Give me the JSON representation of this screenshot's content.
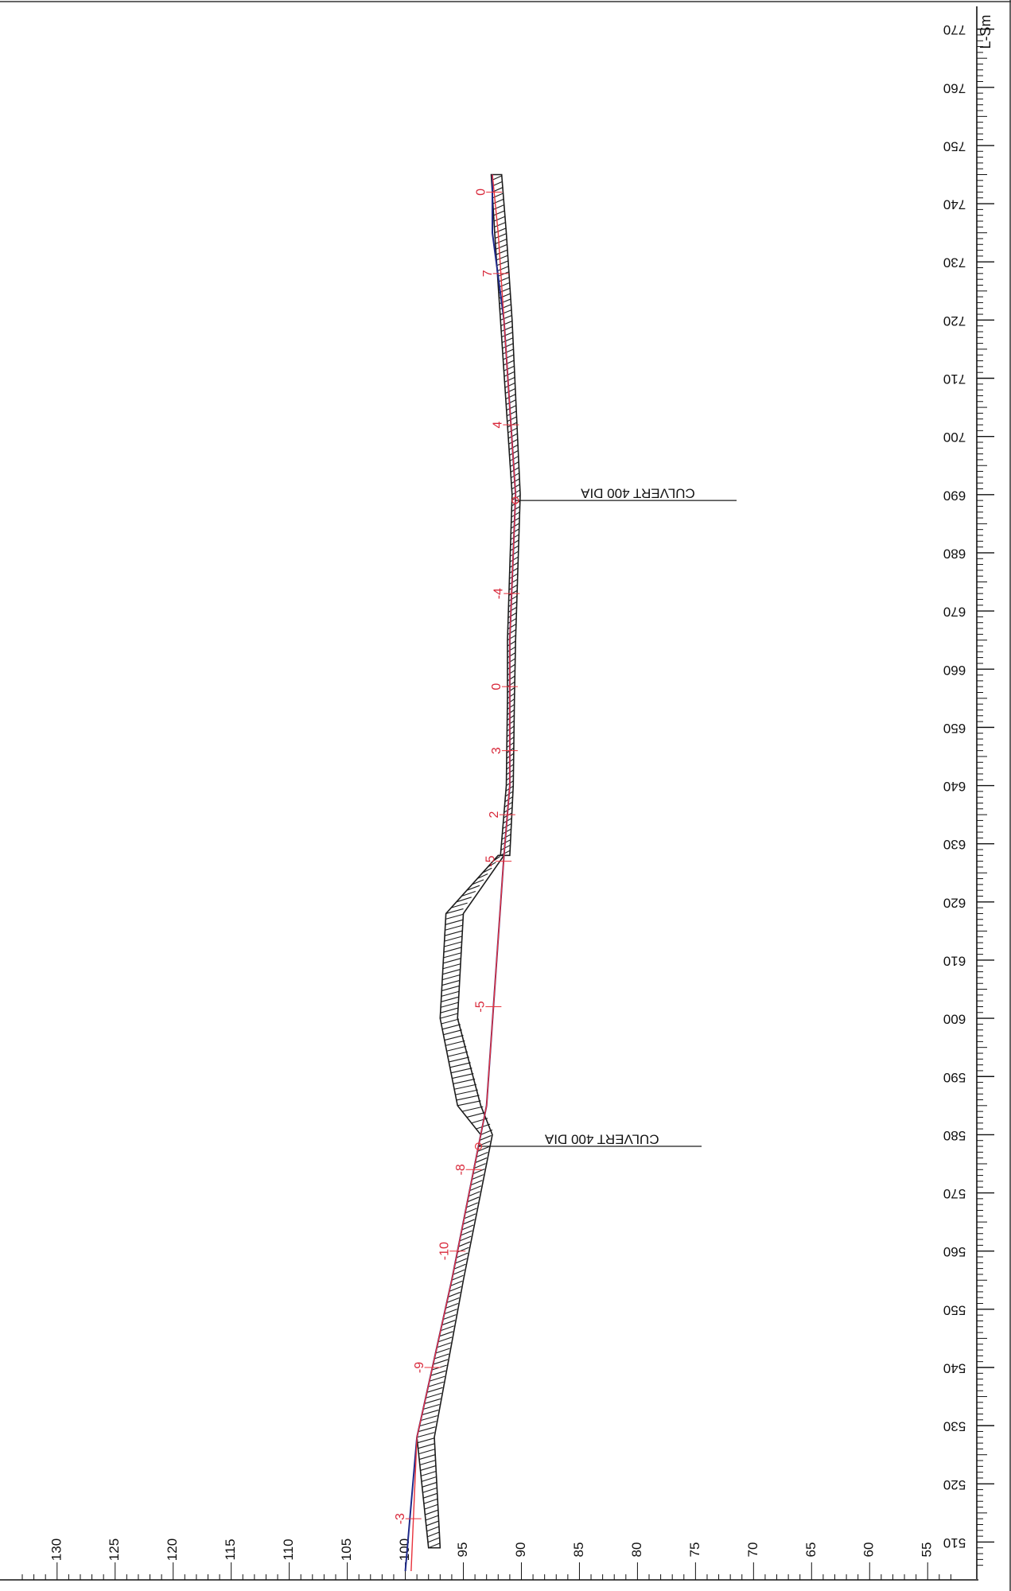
{
  "drawing": {
    "chainage_unit_label": "L-Sm",
    "chainage_ticks": [
      "510",
      "520",
      "530",
      "540",
      "550",
      "560",
      "570",
      "580",
      "590",
      "600",
      "610",
      "620",
      "630",
      "640",
      "650",
      "660",
      "670",
      "680",
      "690",
      "700",
      "710",
      "720",
      "730",
      "740",
      "750",
      "760",
      "770"
    ],
    "level_ticks": [
      "130",
      "125",
      "120",
      "115",
      "110",
      "105",
      "100",
      "95",
      "90",
      "85",
      "80",
      "75",
      "70",
      "65",
      "60",
      "55"
    ],
    "annotations": [
      {
        "text": "CULVERT 400 DIA"
      },
      {
        "text": "CULVERT 400 DIA"
      }
    ],
    "grade_labels": [
      "0",
      "7",
      "4",
      "-4",
      "0",
      "3",
      "2",
      "-5",
      "-5",
      "-8",
      "-10",
      "-9",
      "-3"
    ],
    "colors": {
      "design_line": "#1f2a8a",
      "existing_line": "#e8323c",
      "grade_text": "#d8283a",
      "hatch": "#1c1c1c",
      "axis": "#111111"
    }
  },
  "chart_data": {
    "type": "line",
    "x_label": "L-Sm",
    "x_range": [
      505,
      772
    ],
    "y_range": [
      52,
      133
    ],
    "x_ticks": [
      510,
      520,
      530,
      540,
      550,
      560,
      570,
      580,
      590,
      600,
      610,
      620,
      630,
      640,
      650,
      660,
      670,
      680,
      690,
      700,
      710,
      720,
      730,
      740,
      750,
      760,
      770
    ],
    "y_ticks": [
      130,
      125,
      120,
      115,
      110,
      105,
      100,
      95,
      90,
      85,
      80,
      75,
      70,
      65,
      60,
      55
    ],
    "series": [
      {
        "x": [
          505,
          528,
          555,
          580,
          585,
          628,
          640,
          655,
          665,
          690,
          720,
          735,
          745
        ],
        "y": [
          100,
          99,
          96,
          93.5,
          93,
          91.5,
          91,
          91,
          91,
          90.5,
          91.5,
          92.5,
          92.5
        ]
      },
      {
        "x": [
          505,
          528,
          555,
          580,
          585,
          628,
          640,
          655,
          665,
          690,
          720,
          735,
          745
        ],
        "y": [
          99.5,
          99,
          96,
          93.5,
          93,
          91.5,
          91,
          91,
          91,
          90.5,
          91.5,
          92,
          92.5
        ]
      }
    ],
    "culverts": [
      {
        "label": "CULVERT 400 DIA",
        "chainage": 578
      },
      {
        "label": "CULVERT 400 DIA",
        "chainage": 689
      }
    ],
    "grade_markers": [
      {
        "label": "0",
        "chainage": 742
      },
      {
        "label": "7",
        "chainage": 728
      },
      {
        "label": "4",
        "chainage": 702
      },
      {
        "label": "-4",
        "chainage": 673
      },
      {
        "label": "0",
        "chainage": 657
      },
      {
        "label": "3",
        "chainage": 646
      },
      {
        "label": "2",
        "chainage": 635
      },
      {
        "label": "-5",
        "chainage": 627
      },
      {
        "label": "-5",
        "chainage": 602
      },
      {
        "label": "-8",
        "chainage": 574
      },
      {
        "label": "-10",
        "chainage": 560
      },
      {
        "label": "-9",
        "chainage": 540
      },
      {
        "label": "-3",
        "chainage": 514
      }
    ],
    "hatched_bands": [
      {
        "x": [
          509,
          528,
          555,
          580,
          585,
          600,
          618,
          628
        ],
        "y_top": [
          98,
          99,
          96,
          93.5,
          95.5,
          97,
          96.5,
          92
        ],
        "y_bot": [
          97,
          97.5,
          95,
          92.5,
          93.5,
          95.5,
          95,
          91.5
        ]
      },
      {
        "x": [
          628,
          640,
          655,
          665,
          690,
          720,
          735,
          745
        ],
        "y_top": [
          91.8,
          91.3,
          91.2,
          91.2,
          90.8,
          91.8,
          92.3,
          92.6
        ],
        "y_bot": [
          91,
          90.7,
          90.6,
          90.5,
          90.1,
          90.8,
          91.3,
          91.7
        ]
      }
    ]
  }
}
